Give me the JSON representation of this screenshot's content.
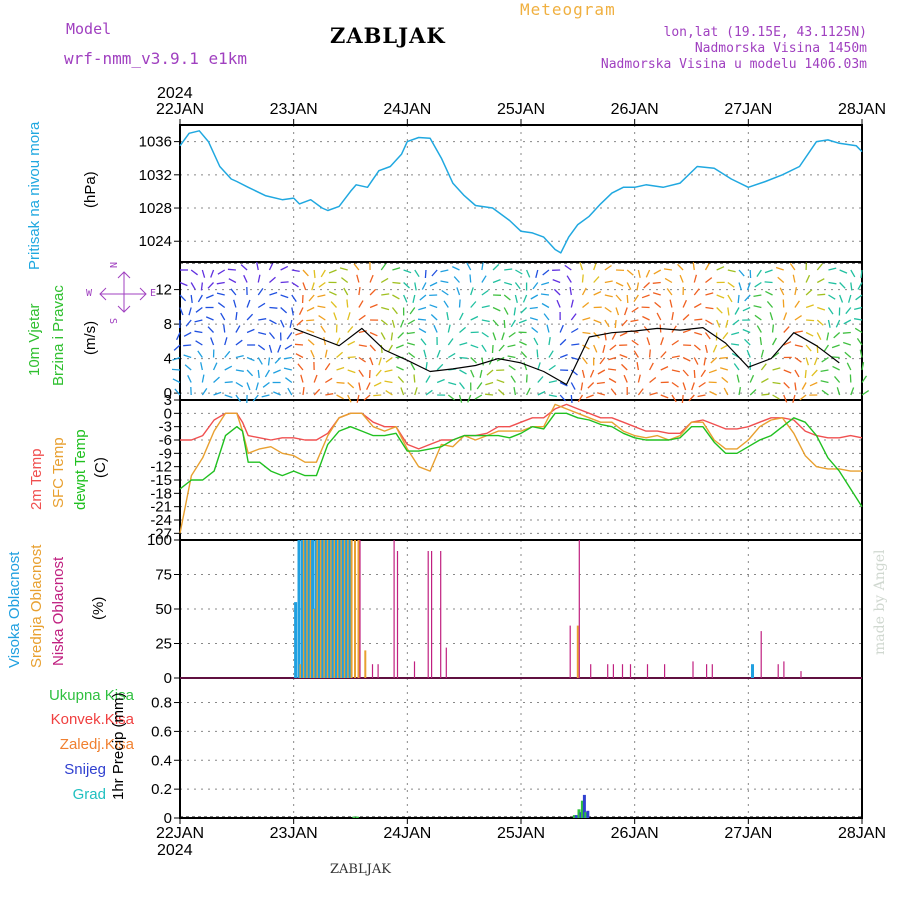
{
  "header": {
    "model_label": "Model",
    "model_name": "wrf-nmm_v3.9.1 e1km",
    "station": "ZABLJAK",
    "product": "Meteogram",
    "coords": "lon,lat (19.15E, 43.1125N)",
    "altitude": "Nadmorska Visina 1450m",
    "model_altitude": "Nadmorska Visina u modelu 1406.03m"
  },
  "footer": {
    "station": "ZABLJAK",
    "signature": "made by Angel"
  },
  "axis_labels": {
    "pressure": [
      "Pritisak na nivou mora",
      "(hPa)"
    ],
    "wind": [
      "10m Vjetar",
      "Brzina i Pravac",
      "(m/s)"
    ],
    "temp": [
      "2m Temp",
      "SFC Temp",
      "dewpt Temp",
      "(C)"
    ],
    "cloud": [
      "Visoka Oblacnost",
      "Srednja Oblacnost",
      "Niska Oblacnost",
      "(%)"
    ],
    "precip": [
      "Ukupna Kisa",
      "Konvek.Kisa",
      "Zaledj.Kisa",
      "Snijeg",
      "Grad",
      "1hr Precip (mm)"
    ],
    "compass": {
      "n": "N",
      "s": "S",
      "w": "W",
      "e": "E"
    }
  },
  "time_axis": {
    "year": "2024",
    "labels": [
      "22JAN",
      "23JAN",
      "24JAN",
      "25JAN",
      "26JAN",
      "27JAN",
      "28JAN"
    ]
  },
  "colors": {
    "pressure": "#20a8e0",
    "temp2m": "#f05050",
    "tsfc": "#e8a030",
    "dewpt": "#20c020",
    "high_cloud": "#20a0e0",
    "mid_cloud": "#e8a030",
    "low_cloud": "#c02080",
    "total_rain": "#30c040",
    "conv_rain": "#f04040",
    "frz_rain": "#f08030",
    "snow": "#3040d0",
    "hail": "#20c0c0"
  },
  "chart_data": [
    {
      "type": "line",
      "panel": "pressure",
      "ylabel": "Pritisak na nivou mora (hPa)",
      "y_ticks": [
        1024,
        1028,
        1032,
        1036
      ],
      "ylim": [
        1021.5,
        1038
      ],
      "x_unit": "day offset from 22JAN 00UTC",
      "x": [
        0,
        0.08,
        0.17,
        0.25,
        0.35,
        0.45,
        0.5,
        0.6,
        0.75,
        0.9,
        1.0,
        1.05,
        1.15,
        1.25,
        1.3,
        1.4,
        1.5,
        1.55,
        1.65,
        1.75,
        1.85,
        1.95,
        2.0,
        2.1,
        2.2,
        2.3,
        2.4,
        2.5,
        2.6,
        2.75,
        2.9,
        3.0,
        3.1,
        3.2,
        3.3,
        3.35,
        3.42,
        3.5,
        3.6,
        3.7,
        3.8,
        3.9,
        4.0,
        4.1,
        4.25,
        4.4,
        4.55,
        4.7,
        4.85,
        5.0,
        5.15,
        5.3,
        5.45,
        5.6,
        5.7,
        5.8,
        5.95,
        6.0
      ],
      "series": [
        {
          "values": [
            1035.5,
            1037.0,
            1037.3,
            1036.0,
            1033.0,
            1031.5,
            1031.2,
            1030.5,
            1029.5,
            1029.0,
            1029.2,
            1028.5,
            1029.0,
            1028.0,
            1027.7,
            1028.2,
            1030.0,
            1030.8,
            1030.5,
            1032.5,
            1033.0,
            1034.5,
            1036.0,
            1036.5,
            1036.4,
            1034.0,
            1031.0,
            1029.5,
            1028.3,
            1028.0,
            1026.5,
            1025.2,
            1025.0,
            1024.5,
            1023.0,
            1022.6,
            1024.5,
            1026.0,
            1027.0,
            1028.5,
            1029.8,
            1030.5,
            1030.5,
            1030.8,
            1030.5,
            1031.0,
            1033.0,
            1032.8,
            1031.5,
            1030.5,
            1031.2,
            1032.0,
            1033.0,
            1036.0,
            1036.2,
            1035.8,
            1035.5,
            1034.8
          ]
        }
      ]
    },
    {
      "type": "line",
      "panel": "wind",
      "ylabel": "10m Vjetar Brzina i Pravac (m/s)",
      "y_ticks": [
        0,
        4,
        8,
        12
      ],
      "ylim": [
        -0.8,
        15.2
      ],
      "x": [
        1.0,
        1.2,
        1.4,
        1.6,
        1.8,
        2.0,
        2.2,
        2.4,
        2.6,
        2.8,
        3.0,
        3.2,
        3.4,
        3.6,
        3.8,
        4.0,
        4.2,
        4.4,
        4.6,
        4.8,
        5.0,
        5.2,
        5.4,
        5.6,
        5.8
      ],
      "series": [
        {
          "values": [
            7.5,
            6.5,
            5.5,
            7.5,
            5.0,
            3.8,
            2.5,
            2.8,
            3.2,
            4.0,
            3.5,
            2.5,
            1.0,
            6.5,
            7.0,
            7.2,
            7.5,
            7.3,
            7.6,
            5.8,
            3.0,
            4.0,
            7.0,
            5.5,
            3.5
          ]
        }
      ]
    },
    {
      "type": "line",
      "panel": "temperature",
      "ylabel": "Temp (C)",
      "y_ticks": [
        3,
        0,
        -3,
        -6,
        -9,
        -12,
        -15,
        -18,
        -21,
        -24,
        -27
      ],
      "ylim": [
        -28.5,
        3
      ],
      "x": [
        0,
        0.1,
        0.2,
        0.3,
        0.4,
        0.5,
        0.55,
        0.6,
        0.7,
        0.8,
        0.9,
        1.0,
        1.1,
        1.2,
        1.3,
        1.4,
        1.5,
        1.6,
        1.7,
        1.8,
        1.9,
        2.0,
        2.1,
        2.2,
        2.3,
        2.4,
        2.5,
        2.6,
        2.7,
        2.8,
        2.9,
        3.0,
        3.1,
        3.2,
        3.3,
        3.4,
        3.5,
        3.6,
        3.7,
        3.8,
        3.9,
        4.0,
        4.1,
        4.2,
        4.3,
        4.4,
        4.5,
        4.6,
        4.7,
        4.8,
        4.9,
        5.0,
        5.1,
        5.2,
        5.3,
        5.4,
        5.5,
        5.6,
        5.7,
        5.8,
        5.9,
        6.0
      ],
      "series": [
        {
          "name": "2m Temp",
          "values": [
            -6,
            -6,
            -5,
            -1.5,
            0,
            0,
            -2,
            -5,
            -5.5,
            -6,
            -5.5,
            -5.5,
            -6,
            -6,
            -4.5,
            -1,
            0,
            0,
            -2,
            -3,
            -3,
            -7,
            -8,
            -7,
            -6,
            -6,
            -5,
            -5,
            -4.5,
            -3,
            -3,
            -2,
            -1,
            -1,
            1,
            2,
            1,
            0,
            -1,
            -1,
            -2,
            -3,
            -4,
            -4,
            -4.5,
            -4.5,
            -2,
            -1.5,
            -2.5,
            -3.5,
            -3.5,
            -3,
            -2,
            -1,
            -1,
            -1.5,
            -4,
            -5,
            -5.5,
            -5.5,
            -5,
            -5.5
          ]
        },
        {
          "name": "SFC Temp",
          "values": [
            -27,
            -14,
            -10,
            -4,
            0,
            0,
            -4,
            -9,
            -8,
            -7.5,
            -9,
            -9.5,
            -11,
            -11,
            -5,
            -1,
            0,
            0,
            -3,
            -4,
            -3,
            -8,
            -12,
            -13,
            -7,
            -7.5,
            -5,
            -6,
            -5,
            -4,
            -4,
            -4,
            -3,
            -3,
            2,
            1,
            0,
            -1,
            -2,
            -2,
            -4,
            -5,
            -5.5,
            -5,
            -6,
            -5,
            -2,
            -2,
            -6,
            -8,
            -8,
            -6,
            -3,
            -1.5,
            -1,
            -4.5,
            -9.5,
            -12,
            -12.5,
            -12.5,
            -13,
            -13
          ]
        },
        {
          "name": "dewpt Temp",
          "values": [
            -17,
            -15,
            -15,
            -13,
            -5,
            -3,
            -4,
            -11,
            -11,
            -13,
            -14,
            -13,
            -14,
            -14,
            -7,
            -4,
            -3,
            -4,
            -5,
            -5,
            -4.5,
            -8.5,
            -8.5,
            -8,
            -7.5,
            -6,
            -5,
            -5,
            -5,
            -5,
            -5.5,
            -4.5,
            -3,
            -3.5,
            0,
            0,
            -1,
            -1.5,
            -2.5,
            -3,
            -4.5,
            -5.5,
            -6,
            -6,
            -6,
            -5.5,
            -3,
            -3,
            -6.5,
            -9,
            -9,
            -7.5,
            -6,
            -5,
            -3,
            -1,
            -2,
            -5,
            -10,
            -13,
            -17,
            -21
          ]
        }
      ]
    },
    {
      "type": "bar",
      "panel": "cloud",
      "ylabel": "Oblacnost (%)",
      "y_ticks": [
        0,
        25,
        50,
        75,
        100
      ],
      "ylim": [
        0,
        100
      ],
      "x": [
        1.03,
        1.06,
        1.09,
        1.12,
        1.15,
        1.18,
        1.21,
        1.24,
        1.27,
        1.3,
        1.33,
        1.36,
        1.39,
        1.42,
        1.45,
        1.48,
        1.51,
        1.54,
        1.57,
        1.63,
        1.68,
        1.73,
        1.87,
        1.9,
        2.05,
        2.17,
        2.2,
        2.28,
        2.33,
        3.42,
        3.5,
        3.53,
        3.6,
        3.75,
        3.8,
        3.88,
        3.95,
        4.1,
        4.25,
        4.5,
        4.62,
        4.67,
        5.05,
        5.1,
        5.25,
        5.3,
        5.45
      ],
      "series": [
        {
          "name": "Visoka Oblacnost",
          "values": [
            55,
            100,
            100,
            100,
            100,
            100,
            100,
            100,
            100,
            100,
            100,
            100,
            100,
            100,
            100,
            100,
            100,
            0,
            0,
            0,
            0,
            0,
            0,
            0,
            0,
            0,
            0,
            0,
            0,
            0,
            0,
            0,
            0,
            0,
            0,
            0,
            0,
            0,
            0,
            0,
            0,
            0,
            10,
            0,
            0,
            0,
            0
          ]
        },
        {
          "name": "Srednja Oblacnost",
          "values": [
            0,
            10,
            100,
            100,
            100,
            50,
            100,
            100,
            100,
            100,
            100,
            100,
            100,
            100,
            100,
            100,
            100,
            100,
            100,
            20,
            0,
            0,
            0,
            0,
            0,
            0,
            0,
            0,
            0,
            0,
            38,
            0,
            0,
            0,
            0,
            0,
            0,
            0,
            0,
            0,
            0,
            0,
            0,
            0,
            0,
            0,
            0
          ]
        },
        {
          "name": "Niska Oblacnost",
          "values": [
            0,
            0,
            0,
            0,
            0,
            0,
            0,
            0,
            0,
            0,
            0,
            0,
            0,
            0,
            0,
            0,
            0,
            0,
            100,
            0,
            10,
            10,
            100,
            92,
            12,
            92,
            92,
            92,
            22,
            38,
            100,
            0,
            10,
            10,
            10,
            10,
            10,
            10,
            10,
            12,
            10,
            10,
            0,
            34,
            10,
            12,
            5
          ]
        }
      ]
    },
    {
      "type": "bar",
      "panel": "precip",
      "ylabel": "1hr Precip (mm)",
      "y_ticks": [
        0,
        0.2,
        0.4,
        0.6,
        0.8
      ],
      "ylim": [
        0,
        0.97
      ],
      "x": [
        1.53,
        1.56,
        3.47,
        3.51,
        3.54,
        3.57
      ],
      "series": [
        {
          "name": "Ukupna Kisa",
          "values": [
            0.01,
            0.01,
            0.02,
            0.06,
            0.12,
            0.04
          ]
        },
        {
          "name": "Snijeg",
          "values": [
            0,
            0,
            0.02,
            0.04,
            0.16,
            0.05
          ]
        }
      ]
    }
  ]
}
